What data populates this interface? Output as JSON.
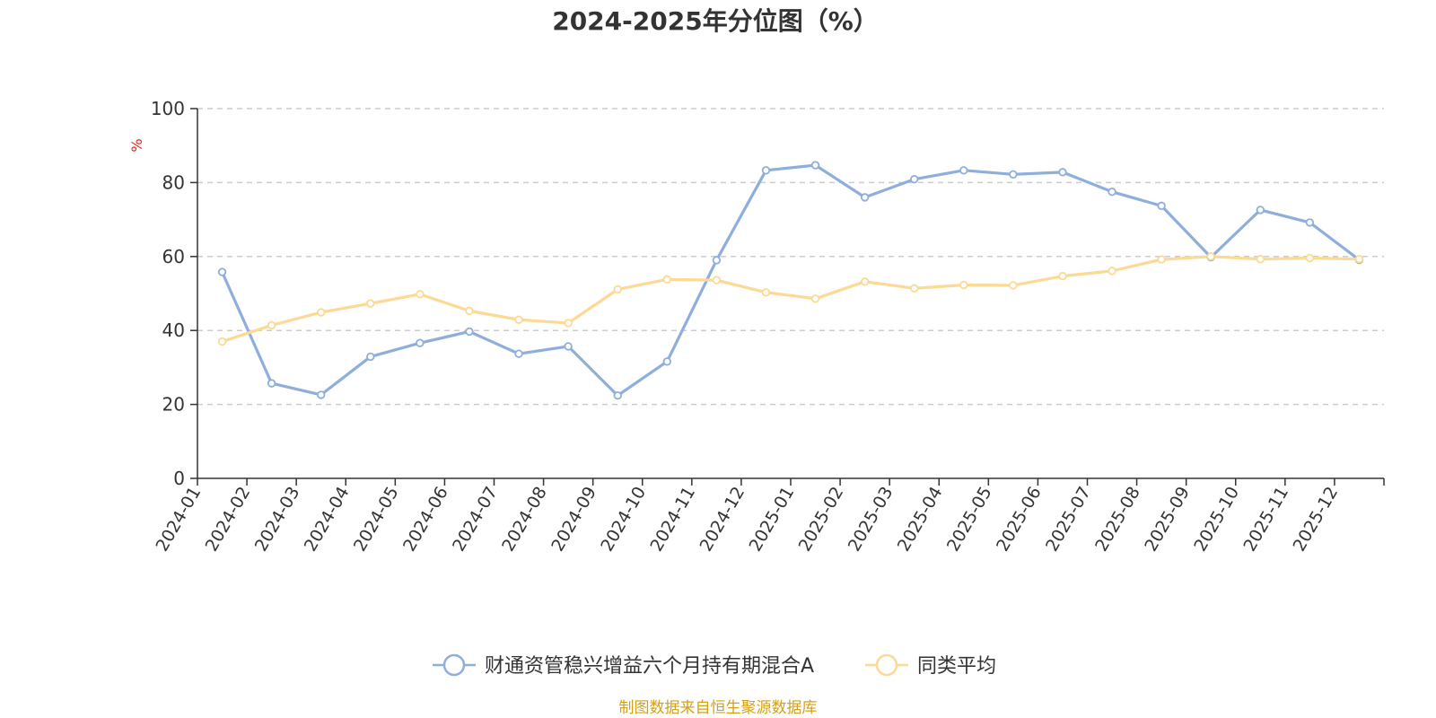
{
  "chart_data": {
    "type": "line",
    "title": "2024-2025年分位图（%）",
    "ylabel": "%",
    "xlabel": "",
    "ylim": [
      0,
      100
    ],
    "yticks": [
      0,
      20,
      40,
      60,
      80,
      100
    ],
    "grid": true,
    "legend_position": "bottom-center",
    "categories": [
      "2024-01",
      "2024-02",
      "2024-03",
      "2024-04",
      "2024-05",
      "2024-06",
      "2024-07",
      "2024-08",
      "2024-09",
      "2024-10",
      "2024-11",
      "2024-12",
      "2025-01",
      "2025-02",
      "2025-03",
      "2025-04",
      "2025-05",
      "2025-06",
      "2025-07",
      "2025-08",
      "2025-09",
      "2025-10",
      "2025-11",
      "2025-12"
    ],
    "series": [
      {
        "name": "财通资管稳兴增益六个月持有期混合A",
        "color": "#8eaedc",
        "values": [
          55.8,
          25.7,
          22.6,
          32.9,
          36.6,
          39.7,
          33.7,
          35.7,
          22.4,
          31.6,
          59.0,
          83.3,
          84.7,
          76.0,
          80.9,
          83.3,
          82.2,
          82.8,
          77.5,
          73.7,
          59.8,
          72.6,
          69.2,
          59.1
        ]
      },
      {
        "name": "同类平均",
        "color": "#fcd994",
        "values": [
          37.0,
          41.4,
          44.9,
          47.3,
          49.8,
          45.3,
          42.9,
          42.0,
          51.1,
          53.8,
          53.6,
          50.3,
          48.6,
          53.2,
          51.4,
          52.3,
          52.2,
          54.7,
          56.1,
          59.2,
          60.0,
          59.3,
          59.6,
          59.3
        ]
      }
    ],
    "source": "制图数据来自恒生聚源数据库"
  }
}
